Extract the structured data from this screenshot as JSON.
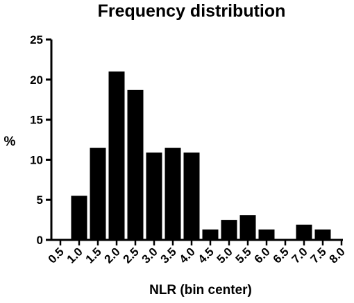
{
  "chart_data": {
    "type": "bar",
    "title": "Frequency distribution",
    "xlabel": "NLR (bin center)",
    "ylabel": "%",
    "categories": [
      "0.5",
      "1.0",
      "1.5",
      "2.0",
      "2.5",
      "3.0",
      "3.5",
      "4.0",
      "4.5",
      "5.0",
      "5.5",
      "6.0",
      "6.5",
      "7.0",
      "7.5",
      "8.0"
    ],
    "values": [
      0,
      5.5,
      11.5,
      21.0,
      18.7,
      10.9,
      11.5,
      10.9,
      1.3,
      2.5,
      3.1,
      1.3,
      0,
      1.9,
      1.3,
      0
    ],
    "ylim": [
      0,
      25
    ],
    "yticks": [
      0,
      5,
      10,
      15,
      20,
      25
    ],
    "grid": false,
    "bar_color": "#000000"
  }
}
